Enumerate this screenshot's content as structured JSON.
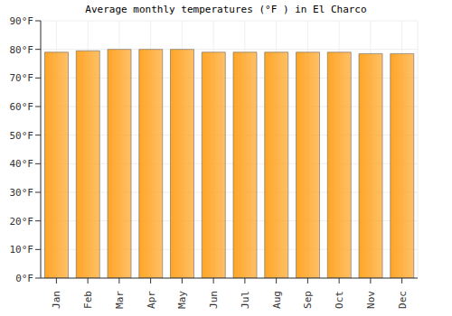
{
  "chart_data": {
    "type": "bar",
    "title": "Average monthly temperatures (°F ) in El Charco",
    "categories": [
      "Jan",
      "Feb",
      "Mar",
      "Apr",
      "May",
      "Jun",
      "Jul",
      "Aug",
      "Sep",
      "Oct",
      "Nov",
      "Dec"
    ],
    "values": [
      79,
      79.5,
      80,
      80,
      80,
      79,
      79,
      79,
      79,
      79,
      78.5,
      78.5
    ],
    "color": "#ffa526",
    "ylim": [
      0,
      90
    ],
    "yticks": [
      {
        "value": 0,
        "label": "0°F"
      },
      {
        "value": 10,
        "label": "10°F"
      },
      {
        "value": 20,
        "label": "20°F"
      },
      {
        "value": 30,
        "label": "30°F"
      },
      {
        "value": 40,
        "label": "40°F"
      },
      {
        "value": 50,
        "label": "50°F"
      },
      {
        "value": 60,
        "label": "60°F"
      },
      {
        "value": 70,
        "label": "70°F"
      },
      {
        "value": 80,
        "label": "80°F"
      },
      {
        "value": 90,
        "label": "90°F"
      }
    ],
    "grid": true
  }
}
